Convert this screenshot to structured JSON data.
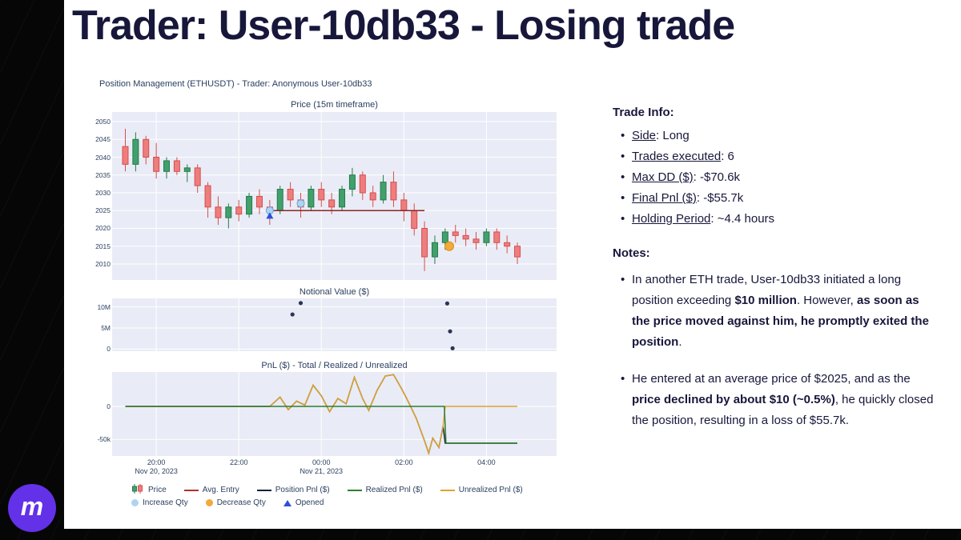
{
  "slide": {
    "title": "Trader: User-10db33 - Losing trade"
  },
  "logo": {
    "text": "m"
  },
  "palette": {
    "panel_bg": "#e9ecf6",
    "grid": "#ffffff",
    "up": "#41a06c",
    "up_border": "#267a4c",
    "down": "#ee7d7d",
    "down_border": "#d64e4e",
    "avg_entry": "#8e2424",
    "position": "#16213e",
    "realized": "#2e7d32",
    "unrealized": "#dfa32e",
    "increase": "#aed4f2",
    "increase_border": "#6aa3d8",
    "decrease": "#f3a93b",
    "decrease_border": "#d98e14",
    "opened": "#2b50d9",
    "notional": "#2a3557",
    "accent_purple": "#6331e8",
    "title_color": "#17173b"
  },
  "figure": {
    "title": "Position Management (ETHUSDT) - Trader: Anonymous User-10db33",
    "legend": {
      "row1": [
        {
          "icon": "candles",
          "label": "Price"
        },
        {
          "icon": "line",
          "color": "#b03030",
          "label": "Avg. Entry"
        },
        {
          "icon": "line",
          "color": "#16213e",
          "label": "Position Pnl ($)"
        },
        {
          "icon": "line",
          "color": "#2e7d32",
          "label": "Realized Pnl ($)"
        },
        {
          "icon": "line",
          "color": "#dfa32e",
          "label": "Unrealized Pnl ($)"
        }
      ],
      "row2": [
        {
          "icon": "dot",
          "color": "#aed4f2",
          "label": "Increase Qty"
        },
        {
          "icon": "dot",
          "color": "#f3a93b",
          "label": "Decrease Qty"
        },
        {
          "icon": "triangle",
          "color": "#2b50d9",
          "label": "Opened"
        }
      ]
    }
  },
  "chart_data": [
    {
      "type": "candlestick",
      "title": "Price (15m timeframe)",
      "x_unit": "hours since Nov 20, 2023 00:00",
      "xlim": [
        18.93,
        29.7
      ],
      "ylim": [
        2005.5,
        2052.7
      ],
      "yticks": [
        2050,
        2045,
        2040,
        2035,
        2030,
        2025,
        2020,
        2015,
        2010
      ],
      "xticks": [
        {
          "t": 20,
          "label": "20:00",
          "sub": "Nov 20, 2023"
        },
        {
          "t": 22,
          "label": "22:00"
        },
        {
          "t": 24,
          "label": "00:00",
          "sub": "Nov 21, 2023"
        },
        {
          "t": 26,
          "label": "02:00"
        },
        {
          "t": 28,
          "label": "04:00"
        }
      ],
      "candles": [
        [
          19.25,
          2043,
          2048,
          2036,
          2038
        ],
        [
          19.5,
          2038,
          2047,
          2036,
          2045
        ],
        [
          19.75,
          2045,
          2046,
          2038,
          2040
        ],
        [
          20.0,
          2040,
          2044,
          2034,
          2036
        ],
        [
          20.25,
          2036,
          2040,
          2034,
          2039
        ],
        [
          20.5,
          2039,
          2040,
          2035,
          2036
        ],
        [
          20.75,
          2036,
          2038,
          2033,
          2037
        ],
        [
          21.0,
          2037,
          2038,
          2030,
          2032
        ],
        [
          21.25,
          2032,
          2033,
          2023,
          2026
        ],
        [
          21.5,
          2026,
          2029,
          2021,
          2023
        ],
        [
          21.75,
          2023,
          2027,
          2020,
          2026
        ],
        [
          22.0,
          2026,
          2028,
          2022,
          2024
        ],
        [
          22.25,
          2024,
          2030,
          2023,
          2029
        ],
        [
          22.5,
          2029,
          2031,
          2024,
          2026
        ],
        [
          22.75,
          2026,
          2028,
          2021,
          2025
        ],
        [
          23.0,
          2025,
          2032,
          2024,
          2031
        ],
        [
          23.25,
          2031,
          2033,
          2026,
          2028
        ],
        [
          23.5,
          2028,
          2030,
          2023,
          2026
        ],
        [
          23.75,
          2026,
          2032,
          2025,
          2031
        ],
        [
          24.0,
          2031,
          2033,
          2026,
          2028
        ],
        [
          24.25,
          2028,
          2030,
          2024,
          2026
        ],
        [
          24.5,
          2026,
          2032,
          2025,
          2031
        ],
        [
          24.75,
          2031,
          2037,
          2029,
          2035
        ],
        [
          25.0,
          2035,
          2036,
          2028,
          2030
        ],
        [
          25.25,
          2030,
          2032,
          2026,
          2028
        ],
        [
          25.5,
          2028,
          2035,
          2027,
          2033
        ],
        [
          25.75,
          2033,
          2036,
          2026,
          2028
        ],
        [
          26.0,
          2028,
          2030,
          2022,
          2025
        ],
        [
          26.25,
          2025,
          2027,
          2018,
          2020
        ],
        [
          26.5,
          2020,
          2022,
          2008,
          2012
        ],
        [
          26.75,
          2012,
          2018,
          2010,
          2016
        ],
        [
          27.0,
          2016,
          2020,
          2014,
          2019
        ],
        [
          27.25,
          2019,
          2021,
          2016,
          2018
        ],
        [
          27.5,
          2018,
          2020,
          2015,
          2017
        ],
        [
          27.75,
          2017,
          2019,
          2014,
          2016
        ],
        [
          28.0,
          2016,
          2020,
          2015,
          2019
        ],
        [
          28.25,
          2019,
          2020,
          2014,
          2016
        ],
        [
          28.5,
          2016,
          2018,
          2013,
          2015
        ],
        [
          28.75,
          2015,
          2016,
          2010,
          2012
        ]
      ],
      "avg_entry": {
        "price": 2025,
        "from_t": 22.75,
        "to_t": 26.5
      },
      "markers": {
        "increase_qty": [
          {
            "t": 22.75,
            "price": 2025
          },
          {
            "t": 23.5,
            "price": 2027
          }
        ],
        "opened": [
          {
            "t": 22.75,
            "price": 2023.5
          }
        ],
        "decrease_qty": [
          {
            "t": 27.1,
            "price": 2015
          }
        ]
      }
    },
    {
      "type": "scatter",
      "title": "Notional Value ($)",
      "ylim": [
        -500000,
        12000000
      ],
      "yticks": [
        {
          "v": 10000000,
          "label": "10M"
        },
        {
          "v": 5000000,
          "label": "5M"
        },
        {
          "v": 0,
          "label": "0"
        }
      ],
      "points": [
        [
          23.3,
          8200000
        ],
        [
          23.5,
          10900000
        ],
        [
          27.05,
          10800000
        ],
        [
          27.12,
          4200000
        ],
        [
          27.18,
          200000
        ]
      ]
    },
    {
      "type": "line",
      "title": "PnL ($) - Total / Realized / Unrealized",
      "ylim": [
        -75000,
        52000
      ],
      "yticks": [
        {
          "v": 0,
          "label": "0"
        },
        {
          "v": -50000,
          "label": "-50k"
        }
      ],
      "series": [
        {
          "name": "Position Pnl ($)",
          "color": "#16213e",
          "points": [
            [
              19.25,
              0
            ],
            [
              22.75,
              0
            ],
            [
              23.0,
              14000
            ],
            [
              23.2,
              -5000
            ],
            [
              23.4,
              8000
            ],
            [
              23.6,
              2000
            ],
            [
              23.8,
              32000
            ],
            [
              24.0,
              16000
            ],
            [
              24.2,
              -8000
            ],
            [
              24.4,
              12000
            ],
            [
              24.6,
              4000
            ],
            [
              24.8,
              44000
            ],
            [
              25.0,
              12000
            ],
            [
              25.15,
              -6000
            ],
            [
              25.35,
              24000
            ],
            [
              25.55,
              46000
            ],
            [
              25.75,
              48000
            ],
            [
              25.95,
              26000
            ],
            [
              26.1,
              8000
            ],
            [
              26.3,
              -18000
            ],
            [
              26.5,
              -52000
            ],
            [
              26.6,
              -70600
            ],
            [
              26.7,
              -48000
            ],
            [
              26.85,
              -62000
            ],
            [
              26.95,
              -30000
            ],
            [
              27.0,
              -55700
            ],
            [
              28.75,
              -55700
            ]
          ]
        },
        {
          "name": "Unrealized Pnl ($)",
          "color": "#dfa32e",
          "points": [
            [
              19.25,
              0
            ],
            [
              22.75,
              0
            ],
            [
              23.0,
              14000
            ],
            [
              23.2,
              -5000
            ],
            [
              23.4,
              8000
            ],
            [
              23.6,
              2000
            ],
            [
              23.8,
              32000
            ],
            [
              24.0,
              16000
            ],
            [
              24.2,
              -8000
            ],
            [
              24.4,
              12000
            ],
            [
              24.6,
              4000
            ],
            [
              24.8,
              44000
            ],
            [
              25.0,
              12000
            ],
            [
              25.15,
              -6000
            ],
            [
              25.35,
              24000
            ],
            [
              25.55,
              46000
            ],
            [
              25.75,
              48000
            ],
            [
              25.95,
              26000
            ],
            [
              26.1,
              8000
            ],
            [
              26.3,
              -18000
            ],
            [
              26.5,
              -52000
            ],
            [
              26.6,
              -70600
            ],
            [
              26.7,
              -48000
            ],
            [
              26.85,
              -62000
            ],
            [
              26.95,
              -30000
            ],
            [
              27.0,
              0
            ],
            [
              28.75,
              0
            ]
          ]
        },
        {
          "name": "Realized Pnl ($)",
          "color": "#2e7d32",
          "points": [
            [
              19.25,
              0
            ],
            [
              26.98,
              0
            ],
            [
              27.02,
              -55700
            ],
            [
              28.75,
              -55700
            ]
          ]
        }
      ]
    }
  ],
  "trade_info": {
    "heading": "Trade Info:",
    "items": [
      {
        "label": "Side",
        "value": "Long"
      },
      {
        "label": "Trades executed",
        "value": "6"
      },
      {
        "label": "Max DD ($)",
        "value": "-$70.6k"
      },
      {
        "label": "Final Pnl ($)",
        "value": "-$55.7k"
      },
      {
        "label": "Holding Period",
        "value": "~4.4 hours"
      }
    ]
  },
  "notes": {
    "heading": "Notes:",
    "bullets": [
      {
        "segments": [
          {
            "text": "In another ETH trade, User-10db33 initiated a long position exceeding ",
            "bold": false
          },
          {
            "text": "$10 million",
            "bold": true
          },
          {
            "text": ". However, ",
            "bold": false
          },
          {
            "text": "as soon as the price moved against him, he promptly exited the position",
            "bold": true
          },
          {
            "text": ".",
            "bold": false
          }
        ]
      },
      {
        "segments": [
          {
            "text": "He entered at an average price of $2025, and as the ",
            "bold": false
          },
          {
            "text": "price declined by about $10 (~0.5%)",
            "bold": true
          },
          {
            "text": ", he quickly closed the position, resulting in a loss of $55.7k.",
            "bold": false
          }
        ]
      }
    ]
  }
}
